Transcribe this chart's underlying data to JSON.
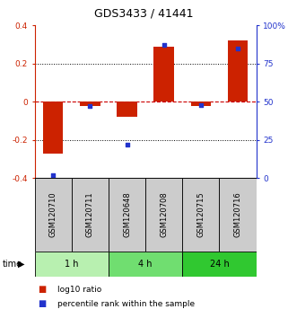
{
  "title": "GDS3433 / 41441",
  "samples": [
    "GSM120710",
    "GSM120711",
    "GSM120648",
    "GSM120708",
    "GSM120715",
    "GSM120716"
  ],
  "log10_ratio": [
    -0.27,
    -0.02,
    -0.08,
    0.29,
    -0.02,
    0.32
  ],
  "percentile_rank": [
    2,
    47,
    22,
    87,
    48,
    85
  ],
  "groups": [
    {
      "label": "1 h",
      "indices": [
        0,
        1
      ],
      "color": "#b8f0b0"
    },
    {
      "label": "4 h",
      "indices": [
        2,
        3
      ],
      "color": "#70de70"
    },
    {
      "label": "24 h",
      "indices": [
        4,
        5
      ],
      "color": "#30c830"
    }
  ],
  "ylim_left": [
    -0.4,
    0.4
  ],
  "ylim_right": [
    0,
    100
  ],
  "bar_color": "#cc2200",
  "dot_color": "#2233cc",
  "bg_color": "#ffffff",
  "header_bg": "#cccccc",
  "zero_line_color": "#cc0000",
  "left_axis_color": "#cc2200",
  "right_axis_color": "#2233cc",
  "title_fontsize": 9,
  "label_fontsize": 6,
  "tick_fontsize": 6.5,
  "legend_fontsize": 6.5,
  "bar_width": 0.55
}
